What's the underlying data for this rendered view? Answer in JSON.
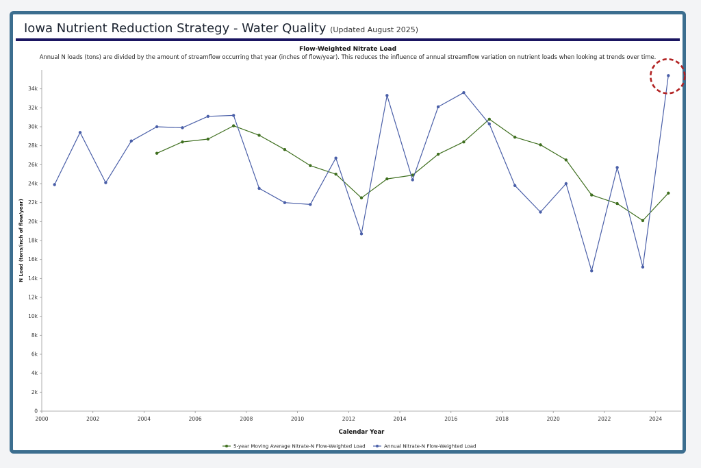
{
  "header": {
    "title": "Iowa Nutrient Reduction Strategy - Water Quality",
    "updated": "(Updated August 2025)"
  },
  "colors": {
    "frame": "#3c6e8f",
    "rule": "#1a1561",
    "annual": "#4a5fa8",
    "moving_avg": "#3f6f1f",
    "highlight": "#b22222"
  },
  "chart_data": {
    "type": "line",
    "title": "Flow-Weighted Nitrate Load",
    "subtitle": "Annual N loads (tons) are divided by the amount of streamflow occurring that year (inches of flow/year). This reduces the influence of annual streamflow variation on nutrient loads when looking at trends over time.",
    "xlabel": "Calendar Year",
    "ylabel": "N Load (tons/inch of flow/year)",
    "xlim": [
      2000,
      2025
    ],
    "ylim": [
      0,
      36000
    ],
    "x_ticks": [
      2000,
      2002,
      2004,
      2006,
      2008,
      2010,
      2012,
      2014,
      2016,
      2018,
      2020,
      2022,
      2024
    ],
    "x_tick_labels": [
      "2000",
      "2002",
      "2004",
      "2006",
      "2008",
      "2010",
      "2012",
      "2014",
      "2016",
      "2018",
      "2020",
      "2022",
      "2024"
    ],
    "y_ticks": [
      0,
      2000,
      4000,
      6000,
      8000,
      10000,
      12000,
      14000,
      16000,
      18000,
      20000,
      22000,
      24000,
      26000,
      28000,
      30000,
      32000,
      34000
    ],
    "y_tick_labels": [
      "0",
      "2k",
      "4k",
      "6k",
      "8k",
      "10k",
      "12k",
      "14k",
      "16k",
      "18k",
      "20k",
      "22k",
      "24k",
      "26k",
      "28k",
      "30k",
      "32k",
      "34k"
    ],
    "grid": false,
    "legend_position": "bottom",
    "series": [
      {
        "name": "5-year Moving Average Nitrate-N Flow-Weighted Load",
        "key": "moving_avg",
        "x": [
          2004.5,
          2005.5,
          2006.5,
          2007.5,
          2008.5,
          2009.5,
          2010.5,
          2011.5,
          2012.5,
          2013.5,
          2014.5,
          2015.5,
          2016.5,
          2017.5,
          2018.5,
          2019.5,
          2020.5,
          2021.5,
          2022.5,
          2023.5,
          2024.5
        ],
        "values": [
          27200,
          28400,
          28700,
          30100,
          29100,
          27600,
          25900,
          25000,
          22500,
          24500,
          24900,
          27100,
          28400,
          30800,
          28900,
          28100,
          26500,
          22800,
          21900,
          20100,
          23000
        ]
      },
      {
        "name": "Annual Nitrate-N Flow-Weighted Load",
        "key": "annual",
        "x": [
          2000.5,
          2001.5,
          2002.5,
          2003.5,
          2004.5,
          2005.5,
          2006.5,
          2007.5,
          2008.5,
          2009.5,
          2010.5,
          2011.5,
          2012.5,
          2013.5,
          2014.5,
          2015.5,
          2016.5,
          2017.5,
          2018.5,
          2019.5,
          2020.5,
          2021.5,
          2022.5,
          2023.5,
          2024.5
        ],
        "values": [
          23900,
          29400,
          24100,
          28500,
          30000,
          29900,
          31100,
          31200,
          23500,
          22000,
          21800,
          26700,
          18700,
          33300,
          24400,
          32100,
          33600,
          30300,
          23800,
          21000,
          24000,
          14800,
          25700,
          15200,
          35400
        ]
      }
    ],
    "annotations": [
      {
        "type": "dashed-circle",
        "target_series": "annual",
        "target_x": 2024.5
      }
    ]
  }
}
